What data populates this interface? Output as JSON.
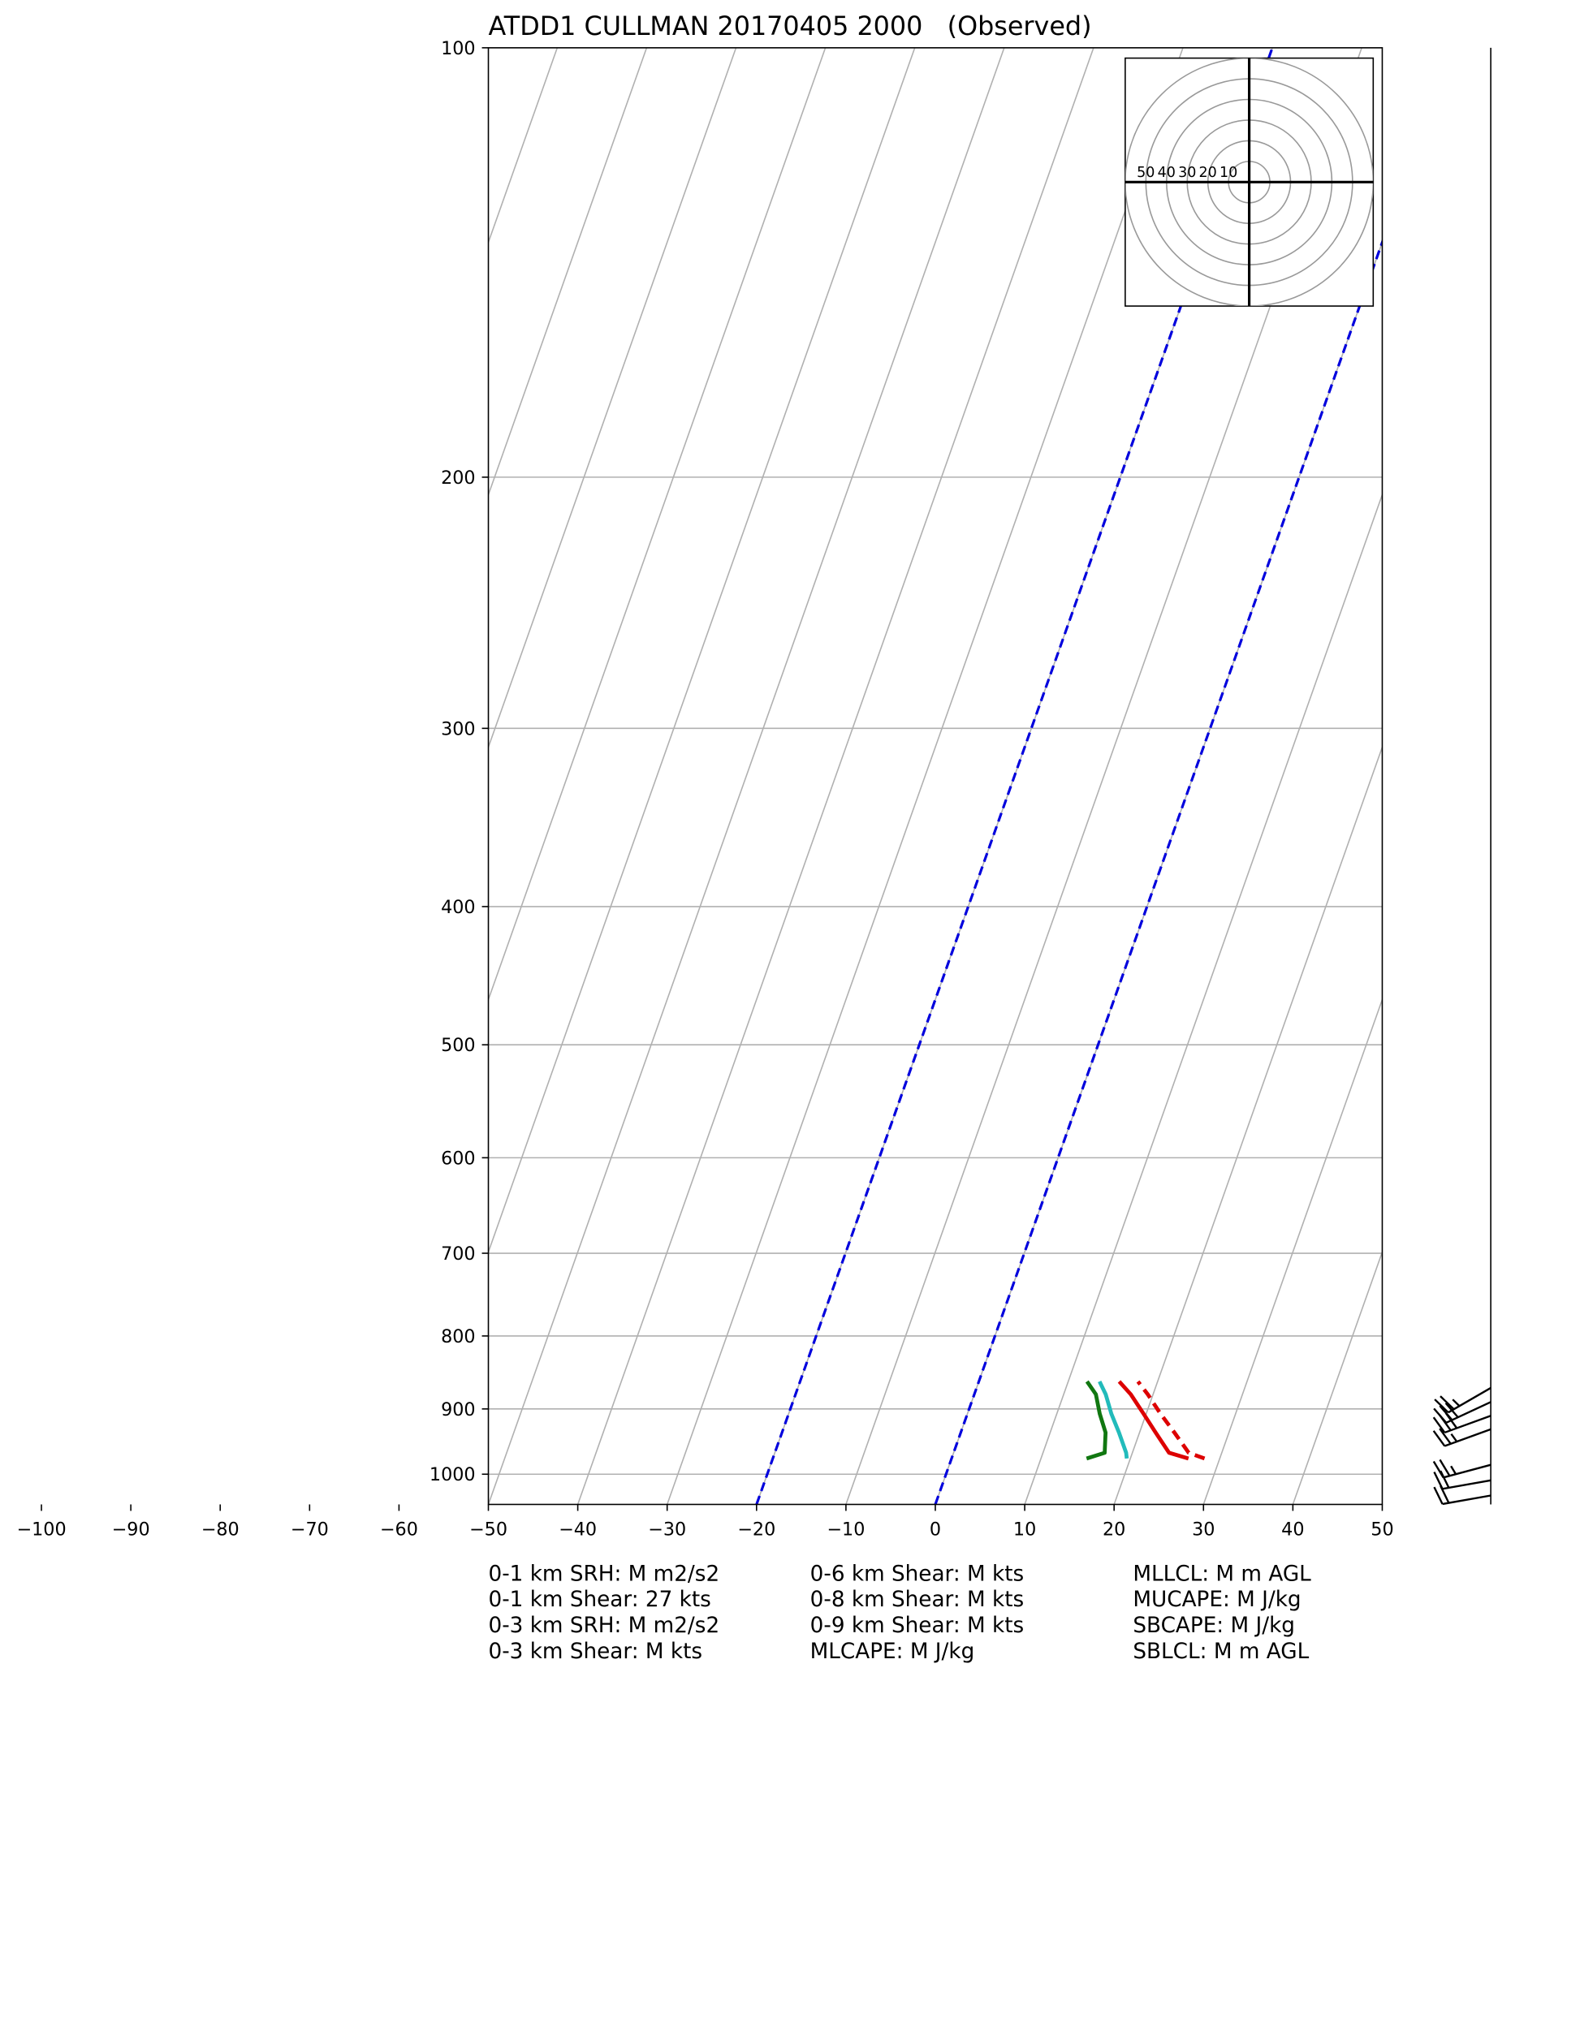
{
  "chart_data": {
    "type": "skewt",
    "title": "ATDD1 CULLMAN 20170405 2000   (Observed)",
    "log_y": true,
    "grid": true,
    "xlim": [
      -50,
      50
    ],
    "ylim": [
      1050,
      100
    ],
    "xticks": [
      {
        "value": -100,
        "label": "−100"
      },
      {
        "value": -90,
        "label": "−90"
      },
      {
        "value": -80,
        "label": "−80"
      },
      {
        "value": -70,
        "label": "−70"
      },
      {
        "value": -60,
        "label": "−60"
      },
      {
        "value": -50,
        "label": "−50"
      },
      {
        "value": -40,
        "label": "−40"
      },
      {
        "value": -30,
        "label": "−30"
      },
      {
        "value": -20,
        "label": "−20"
      },
      {
        "value": -10,
        "label": "−10"
      },
      0,
      10,
      20,
      30,
      40,
      50
    ],
    "yticks": [
      100,
      200,
      300,
      400,
      500,
      600,
      700,
      800,
      900,
      1000
    ],
    "dashed_isotherms": {
      "values": [
        -20,
        0
      ],
      "color": "#0000dd"
    },
    "pressure": [
      975,
      966,
      935,
      907,
      879,
      861
    ],
    "series": [
      {
        "color": "#dd0000",
        "style": "solid",
        "values": [
          26.5,
          24.1,
          21.8,
          19.7,
          17.5,
          15.7
        ]
      },
      {
        "color": "#dd0000",
        "style": "dashed",
        "values": [
          28.3,
          26.3,
          23.9,
          21.6,
          19.4,
          17.8
        ]
      },
      {
        "color": "#22bbbb",
        "style": "solid",
        "values": [
          19.6,
          19.3,
          17.7,
          16.1,
          14.7,
          13.5
        ]
      },
      {
        "color": "#117711",
        "style": "solid",
        "values": [
          15.1,
          16.9,
          16.2,
          14.8,
          13.6,
          12.1
        ]
      }
    ],
    "barbs": {
      "pressure": [
        1035,
        1010,
        985,
        930,
        910,
        890,
        870
      ],
      "speed": [
        20,
        20,
        25,
        25,
        30,
        30,
        25
      ],
      "direction": [
        260,
        260,
        255,
        250,
        250,
        245,
        240
      ]
    },
    "hodograph": {
      "lim": [
        -60,
        60
      ],
      "rings": [
        10,
        20,
        30,
        40,
        50,
        60
      ],
      "ring_labels": [
        50,
        40,
        30,
        20,
        10
      ]
    },
    "indices": [
      [
        "0-1 km SRH: M m2/s2",
        "0-1 km Shear: 27 kts",
        "0-3 km SRH: M m2/s2",
        "0-3 km Shear: M kts"
      ],
      [
        "0-6 km Shear: M kts",
        "0-8 km Shear: M kts",
        "0-9 km Shear: M kts",
        "MLCAPE: M J/kg"
      ],
      [
        "MLLCL: M m AGL",
        "MUCAPE: M J/kg",
        "SBCAPE: M J/kg",
        "SBLCL: M m AGL"
      ]
    ]
  }
}
